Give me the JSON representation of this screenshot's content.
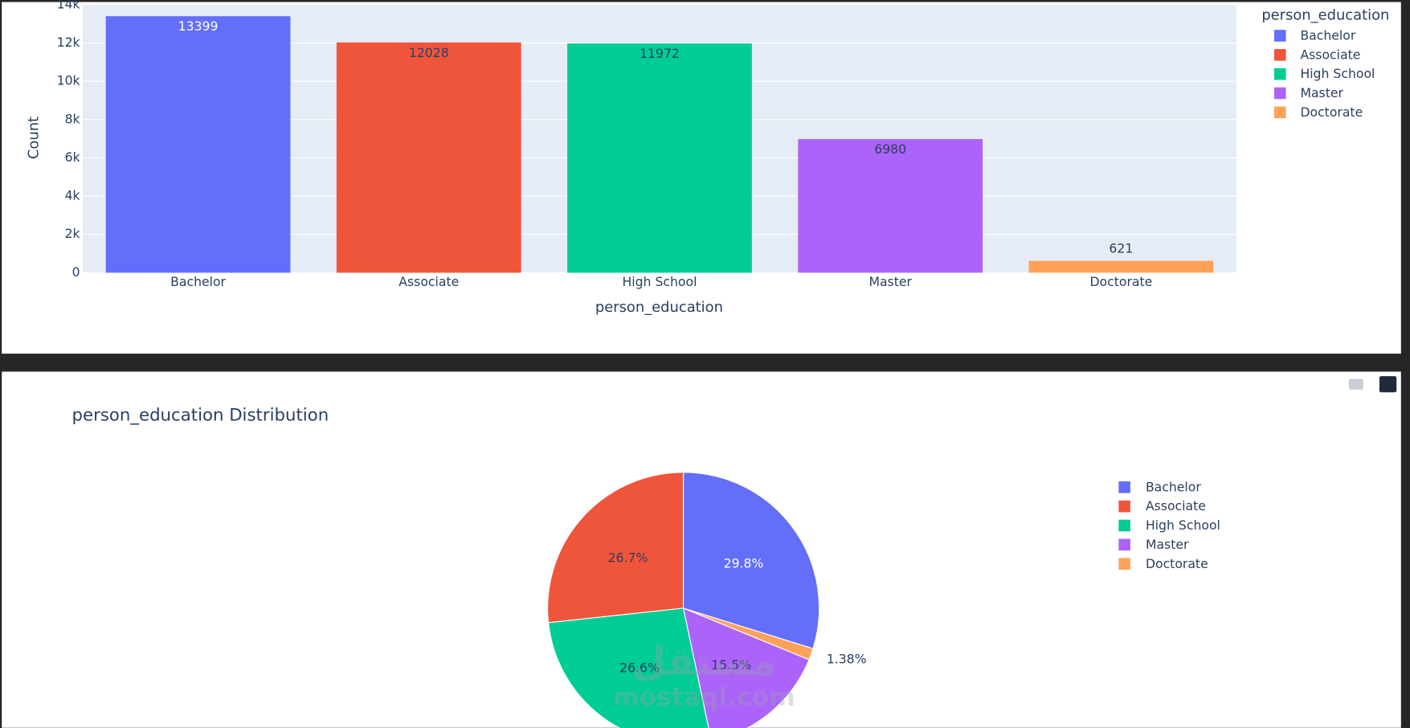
{
  "chart_data": [
    {
      "type": "bar",
      "categories": [
        "Bachelor",
        "Associate",
        "High School",
        "Master",
        "Doctorate"
      ],
      "values": [
        13399,
        12028,
        11972,
        6980,
        621
      ],
      "colors": [
        "#636efa",
        "#ef553b",
        "#00cc96",
        "#ab63fa",
        "#ffa15a"
      ],
      "xlabel": "person_education",
      "ylabel": "Count",
      "legend_title": "person_education",
      "ylim": [
        0,
        14000
      ],
      "yticks": [
        0,
        {
          "value": 2000,
          "label": "2k"
        },
        {
          "value": 4000,
          "label": "4k"
        },
        {
          "value": 6000,
          "label": "6k"
        },
        {
          "value": 8000,
          "label": "8k"
        },
        {
          "value": 10000,
          "label": "10k"
        },
        {
          "value": 12000,
          "label": "12k"
        },
        {
          "value": 14000,
          "label": "14k"
        }
      ],
      "grid": true
    },
    {
      "type": "pie",
      "title": "person_education Distribution",
      "categories": [
        "Bachelor",
        "Associate",
        "High School",
        "Master",
        "Doctorate"
      ],
      "values": [
        29.8,
        26.7,
        26.6,
        15.5,
        1.38
      ],
      "value_labels": [
        "29.8%",
        "26.7%",
        "26.6%",
        "15.5%",
        "1.38%"
      ],
      "colors": [
        "#636efa",
        "#ef553b",
        "#00cc96",
        "#ab63fa",
        "#ffa15a"
      ]
    }
  ],
  "watermark": {
    "arabic": "مستقل",
    "latin": "mostaql.com"
  }
}
